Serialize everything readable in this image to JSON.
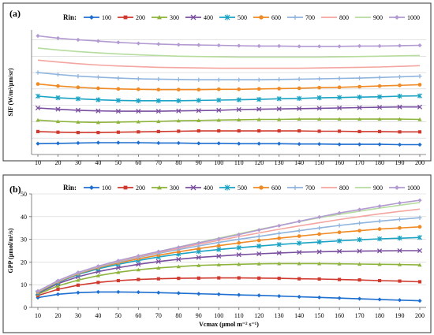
{
  "chart_data": [
    {
      "type": "line",
      "panel_label": "(a)",
      "ylabel": "SIF (W/m²/μm/sr)",
      "legend_title": "Rin:",
      "legend_placement": "top",
      "grid": true,
      "ylim": [
        0,
        3.8
      ],
      "x": [
        10,
        20,
        30,
        40,
        50,
        60,
        70,
        80,
        90,
        100,
        110,
        120,
        130,
        140,
        150,
        160,
        170,
        180,
        190,
        200
      ],
      "series": [
        {
          "name": "100",
          "color": "#1f6fd0",
          "marker": "diamond",
          "values": [
            0.33,
            0.34,
            0.35,
            0.36,
            0.36,
            0.36,
            0.35,
            0.35,
            0.34,
            0.34,
            0.33,
            0.33,
            0.33,
            0.32,
            0.32,
            0.31,
            0.31,
            0.31,
            0.3,
            0.3
          ]
        },
        {
          "name": "200",
          "color": "#d03a2e",
          "marker": "square",
          "values": [
            0.7,
            0.68,
            0.67,
            0.67,
            0.68,
            0.69,
            0.7,
            0.71,
            0.72,
            0.72,
            0.72,
            0.72,
            0.72,
            0.72,
            0.71,
            0.71,
            0.7,
            0.7,
            0.69,
            0.69
          ]
        },
        {
          "name": "300",
          "color": "#8cb33a",
          "marker": "triangle",
          "values": [
            1.05,
            1.01,
            0.99,
            0.98,
            0.99,
            1.0,
            1.01,
            1.03,
            1.04,
            1.05,
            1.06,
            1.07,
            1.07,
            1.08,
            1.08,
            1.08,
            1.08,
            1.08,
            1.08,
            1.07
          ]
        },
        {
          "name": "400",
          "color": "#7a4fa0",
          "marker": "x",
          "values": [
            1.42,
            1.38,
            1.35,
            1.33,
            1.32,
            1.32,
            1.32,
            1.33,
            1.34,
            1.35,
            1.37,
            1.38,
            1.39,
            1.4,
            1.41,
            1.42,
            1.43,
            1.44,
            1.45,
            1.45
          ]
        },
        {
          "name": "500",
          "color": "#1aa3c4",
          "marker": "star",
          "values": [
            1.78,
            1.73,
            1.7,
            1.67,
            1.65,
            1.64,
            1.64,
            1.64,
            1.65,
            1.66,
            1.67,
            1.68,
            1.7,
            1.71,
            1.73,
            1.74,
            1.75,
            1.76,
            1.78,
            1.79
          ]
        },
        {
          "name": "600",
          "color": "#f08a24",
          "marker": "circle",
          "values": [
            2.15,
            2.09,
            2.05,
            2.02,
            2.0,
            1.99,
            1.98,
            1.98,
            1.98,
            1.99,
            1.99,
            2.0,
            2.01,
            2.02,
            2.04,
            2.05,
            2.07,
            2.09,
            2.11,
            2.13
          ]
        },
        {
          "name": "700",
          "color": "#8fb4de",
          "marker": "plus",
          "values": [
            2.5,
            2.44,
            2.39,
            2.36,
            2.33,
            2.31,
            2.3,
            2.29,
            2.28,
            2.28,
            2.28,
            2.28,
            2.29,
            2.3,
            2.31,
            2.32,
            2.33,
            2.35,
            2.37,
            2.39
          ]
        },
        {
          "name": "800",
          "color": "#f4a5a0",
          "marker": "none",
          "values": [
            2.88,
            2.82,
            2.77,
            2.73,
            2.7,
            2.68,
            2.66,
            2.65,
            2.64,
            2.63,
            2.63,
            2.63,
            2.63,
            2.63,
            2.64,
            2.65,
            2.66,
            2.67,
            2.69,
            2.71
          ]
        },
        {
          "name": "900",
          "color": "#b6dc9e",
          "marker": "none",
          "values": [
            3.25,
            3.19,
            3.14,
            3.1,
            3.07,
            3.04,
            3.02,
            3.0,
            2.99,
            2.98,
            2.97,
            2.97,
            2.97,
            2.97,
            2.97,
            2.98,
            2.99,
            3.0,
            3.01,
            3.02
          ]
        },
        {
          "name": "1000",
          "color": "#b39ad2",
          "marker": "diamond",
          "values": [
            3.62,
            3.55,
            3.5,
            3.46,
            3.42,
            3.39,
            3.37,
            3.35,
            3.34,
            3.33,
            3.32,
            3.31,
            3.31,
            3.3,
            3.3,
            3.3,
            3.31,
            3.31,
            3.32,
            3.33
          ]
        }
      ]
    },
    {
      "type": "line",
      "panel_label": "(b)",
      "ylabel": "GPP (μmol/m²/s)",
      "xlabel": "Vcmax (μmol m⁻² s⁻¹)",
      "legend_title": "Rin:",
      "legend_placement": "top",
      "grid": true,
      "ylim": [
        0,
        50
      ],
      "yticks": [
        0,
        10,
        20,
        30,
        40,
        50
      ],
      "x": [
        10,
        20,
        30,
        40,
        50,
        60,
        70,
        80,
        90,
        100,
        110,
        120,
        130,
        140,
        150,
        160,
        170,
        180,
        190,
        200
      ],
      "series": [
        {
          "name": "100",
          "color": "#1f6fd0",
          "marker": "diamond",
          "values": [
            4.3,
            5.8,
            6.5,
            6.8,
            6.8,
            6.7,
            6.5,
            6.3,
            6.0,
            5.8,
            5.5,
            5.3,
            5.0,
            4.7,
            4.4,
            4.1,
            3.8,
            3.5,
            3.2,
            2.9
          ]
        },
        {
          "name": "200",
          "color": "#d03a2e",
          "marker": "square",
          "values": [
            5.2,
            8.0,
            9.8,
            11.0,
            11.8,
            12.3,
            12.6,
            12.8,
            12.9,
            13.0,
            13.0,
            12.9,
            12.8,
            12.6,
            12.5,
            12.3,
            12.1,
            11.8,
            11.6,
            11.3
          ]
        },
        {
          "name": "300",
          "color": "#8cb33a",
          "marker": "triangle",
          "values": [
            5.8,
            9.5,
            12.0,
            14.0,
            15.5,
            16.6,
            17.4,
            18.0,
            18.5,
            18.8,
            19.0,
            19.2,
            19.3,
            19.3,
            19.3,
            19.2,
            19.1,
            19.0,
            18.9,
            18.7
          ]
        },
        {
          "name": "400",
          "color": "#7a4fa0",
          "marker": "x",
          "values": [
            6.2,
            10.5,
            13.5,
            15.8,
            17.5,
            19.0,
            20.2,
            21.2,
            22.0,
            22.6,
            23.2,
            23.6,
            24.0,
            24.3,
            24.5,
            24.7,
            24.8,
            24.9,
            25.0,
            25.0
          ]
        },
        {
          "name": "500",
          "color": "#1aa3c4",
          "marker": "star",
          "values": [
            6.5,
            11.0,
            14.5,
            17.0,
            19.0,
            20.7,
            22.2,
            23.5,
            24.6,
            25.5,
            26.3,
            27.0,
            27.7,
            28.3,
            28.8,
            29.3,
            29.8,
            30.2,
            30.5,
            30.8
          ]
        },
        {
          "name": "600",
          "color": "#f08a24",
          "marker": "circle",
          "values": [
            6.7,
            11.3,
            14.8,
            17.5,
            19.6,
            21.4,
            23.0,
            24.5,
            25.9,
            27.2,
            28.4,
            29.5,
            30.5,
            31.4,
            32.3,
            33.1,
            33.8,
            34.5,
            35.0,
            35.5
          ]
        },
        {
          "name": "700",
          "color": "#8fb4de",
          "marker": "plus",
          "values": [
            6.9,
            11.5,
            15.0,
            17.8,
            20.0,
            22.0,
            23.8,
            25.5,
            27.1,
            28.6,
            30.0,
            31.3,
            32.6,
            33.8,
            35.0,
            36.1,
            37.1,
            38.0,
            38.8,
            39.5
          ]
        },
        {
          "name": "800",
          "color": "#f4a5a0",
          "marker": "none",
          "values": [
            7.0,
            11.6,
            15.2,
            18.0,
            20.3,
            22.3,
            24.2,
            26.0,
            27.8,
            29.5,
            31.2,
            32.8,
            34.4,
            35.9,
            37.3,
            38.7,
            40.0,
            41.2,
            42.3,
            43.3
          ]
        },
        {
          "name": "900",
          "color": "#b6dc9e",
          "marker": "none",
          "values": [
            7.1,
            11.7,
            15.3,
            18.1,
            20.5,
            22.6,
            24.6,
            26.6,
            28.6,
            30.5,
            32.4,
            34.3,
            36.1,
            37.8,
            39.5,
            41.0,
            42.4,
            43.8,
            45.0,
            46.2
          ]
        },
        {
          "name": "1000",
          "color": "#b39ad2",
          "marker": "diamond",
          "values": [
            7.2,
            11.8,
            15.4,
            18.2,
            20.6,
            22.7,
            24.6,
            26.5,
            28.4,
            30.2,
            32.1,
            34.1,
            36.0,
            37.9,
            39.8,
            41.6,
            43.1,
            44.6,
            46.0,
            47.2
          ]
        }
      ]
    }
  ]
}
